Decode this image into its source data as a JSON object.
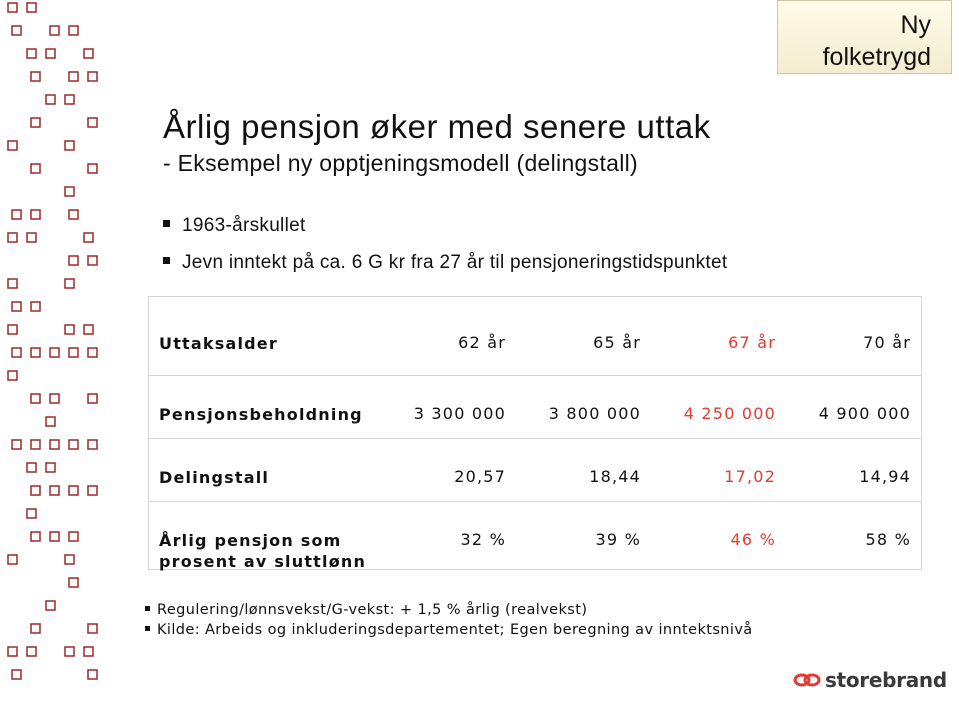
{
  "header": {
    "tag": [
      "Ny",
      "folketrygd"
    ]
  },
  "title": "Årlig pensjon øker med senere uttak",
  "subtitle": "- Eksempel ny opptjeningsmodell (delingstall)",
  "bullets": [
    "1963-årskullet",
    "Jevn inntekt på ca. 6 G kr fra 27 år til pensjoneringstidspunktet"
  ],
  "table": {
    "highlight_column": 3,
    "highlight_color": "#e03c31",
    "header": [
      "Uttaksalder",
      "62 år",
      "65 år",
      "67 år",
      "70 år"
    ],
    "rows": [
      [
        "Pensjonsbeholdning",
        "3 300 000",
        "3 800 000",
        "4 250 000",
        "4 900 000"
      ],
      [
        "Delingstall",
        "20,57",
        "18,44",
        "17,02",
        "14,94"
      ],
      [
        "Årlig pensjon som prosent av sluttlønn",
        "32 %",
        "39 %",
        "46 %",
        "58 %"
      ]
    ]
  },
  "footnotes": [
    "Regulering/lønnsvekst/G-vekst: + 1,5 % årlig (realvekst)",
    "Kilde: Arbeids og inkluderingsdepartementet; Egen beregning av inntektsnivå"
  ],
  "logo": "storebrand"
}
